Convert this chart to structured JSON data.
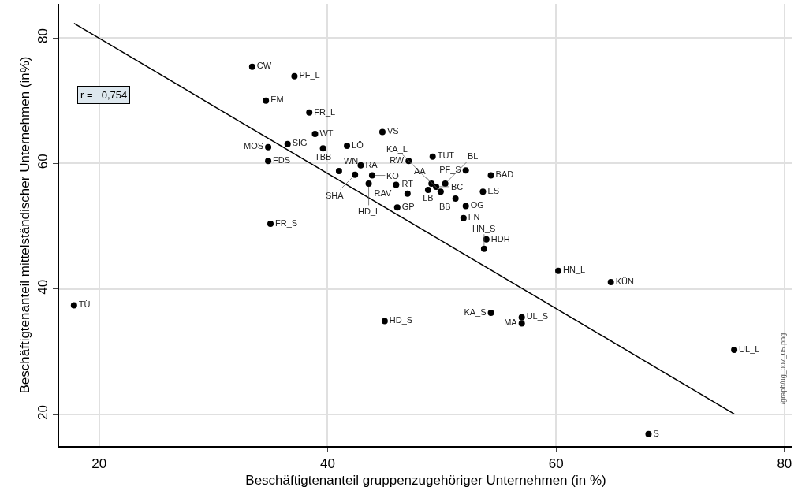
{
  "chart_data": {
    "type": "scatter",
    "xlabel": "Beschäftigtenanteil gruppenzugehöriger Unternehmen (in %)",
    "ylabel": "Beschäftigtenanteil mittelständischer Unternehmen (in%)",
    "xlim": [
      16.5,
      80.7
    ],
    "ylim": [
      15,
      85.4
    ],
    "xticks": [
      20,
      40,
      60,
      80
    ],
    "yticks": [
      20,
      40,
      60,
      80
    ],
    "grid": true,
    "marker": "circle",
    "annotations": [
      "r = −0,754",
      "/graph/ug_007_05.png"
    ],
    "series": [
      {
        "color": "#000000",
        "x": [
          33.4,
          37.1,
          34.6,
          38.4,
          38.9,
          36.5,
          34.8,
          39.6,
          41.7,
          44.8,
          34.8,
          42.9,
          47.1,
          49.2,
          52.1,
          41.0,
          42.4,
          43.9,
          43.6,
          46.0,
          47.0,
          46.1,
          48.8,
          49.1,
          49.5,
          49.9,
          50.3,
          51.2,
          54.3,
          53.6,
          52.1,
          51.9,
          53.9,
          53.7,
          35.0,
          60.2,
          64.8,
          17.8,
          45.0,
          54.3,
          57.0,
          57.0,
          75.6,
          68.1
        ],
        "values": [
          75.4,
          73.9,
          70.0,
          68.1,
          64.7,
          63.1,
          62.6,
          62.4,
          62.8,
          65.0,
          60.4,
          59.7,
          60.4,
          61.1,
          58.9,
          58.8,
          58.2,
          58.1,
          56.8,
          56.6,
          55.2,
          53.0,
          55.8,
          56.8,
          56.3,
          55.5,
          56.8,
          54.4,
          58.1,
          55.5,
          53.2,
          51.3,
          47.9,
          46.4,
          50.4,
          42.9,
          41.1,
          37.4,
          34.9,
          36.2,
          35.5,
          34.5,
          30.3,
          16.9
        ],
        "value_labels": [
          "CW",
          "PF_L",
          "EM",
          "FR_L",
          "WT",
          "SIG",
          "MOS",
          "TBB",
          "LÖ",
          "VS",
          "FDS",
          "RA",
          "RW",
          "TUT",
          "PF_S",
          "WN",
          "SHA",
          "KO",
          "HD_L",
          "RAV",
          "RT",
          "GP",
          "LB",
          "KA_L",
          "BC",
          "AA",
          "BL",
          "BB",
          "BAD",
          "ES",
          "OG",
          "FN",
          "HDH",
          "HN_S",
          "FR_S",
          "HN_L",
          "KÜN",
          "TÜ",
          "HD_S",
          "KA_S",
          "UL_S",
          "MA",
          "UL_L",
          "S"
        ]
      },
      {
        "type": "line",
        "color": "#000000",
        "line_style": "solid",
        "marker": "none",
        "x": [
          17.8,
          75.6
        ],
        "values": [
          82.3,
          20.1
        ]
      }
    ]
  }
}
